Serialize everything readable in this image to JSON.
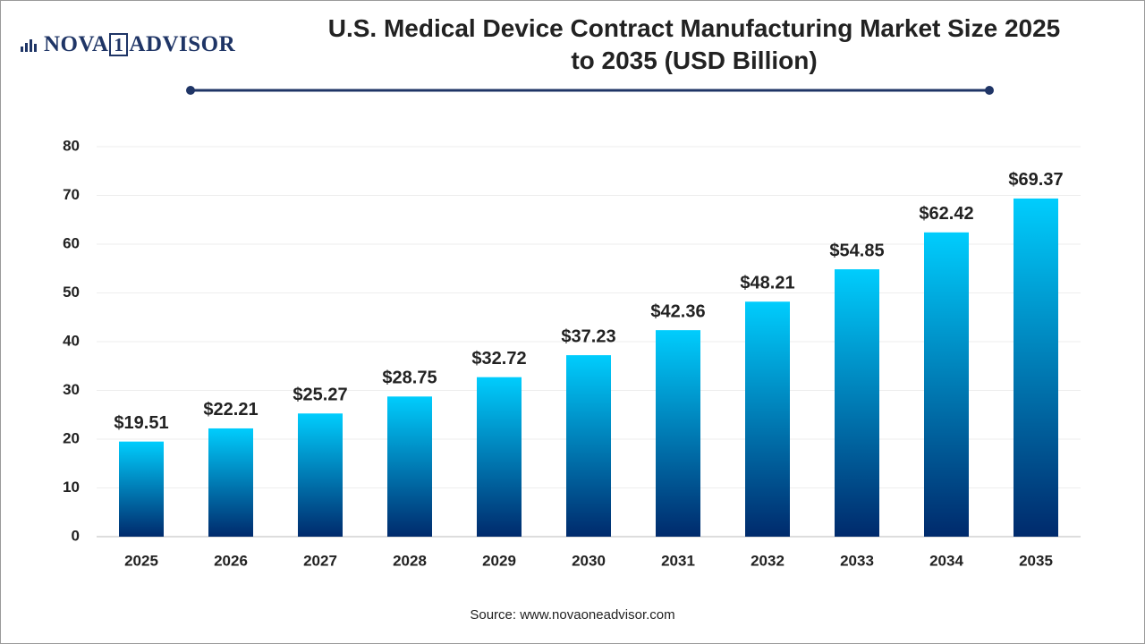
{
  "logo": {
    "left": "NOVA",
    "mid": "1",
    "right": "ADVISOR"
  },
  "chart_data": {
    "type": "bar",
    "title": "U.S. Medical Device Contract Manufacturing Market Size 2025 to 2035 (USD Billion)",
    "categories": [
      "2025",
      "2026",
      "2027",
      "2028",
      "2029",
      "2030",
      "2031",
      "2032",
      "2033",
      "2034",
      "2035"
    ],
    "values": [
      19.51,
      22.21,
      25.27,
      28.75,
      32.72,
      37.23,
      42.36,
      48.21,
      54.85,
      62.42,
      69.37
    ],
    "value_labels": [
      "$19.51",
      "$22.21",
      "$25.27",
      "$28.75",
      "$32.72",
      "$37.23",
      "$42.36",
      "$48.21",
      "$54.85",
      "$62.42",
      "$69.37"
    ],
    "colors": [
      "#00cdfd",
      "#002a6c"
    ],
    "ylim": [
      0,
      80
    ],
    "yticks": [
      0,
      10,
      20,
      30,
      40,
      50,
      60,
      70,
      80
    ],
    "grid": true,
    "source": "Source: www.novaoneadvisor.com"
  }
}
